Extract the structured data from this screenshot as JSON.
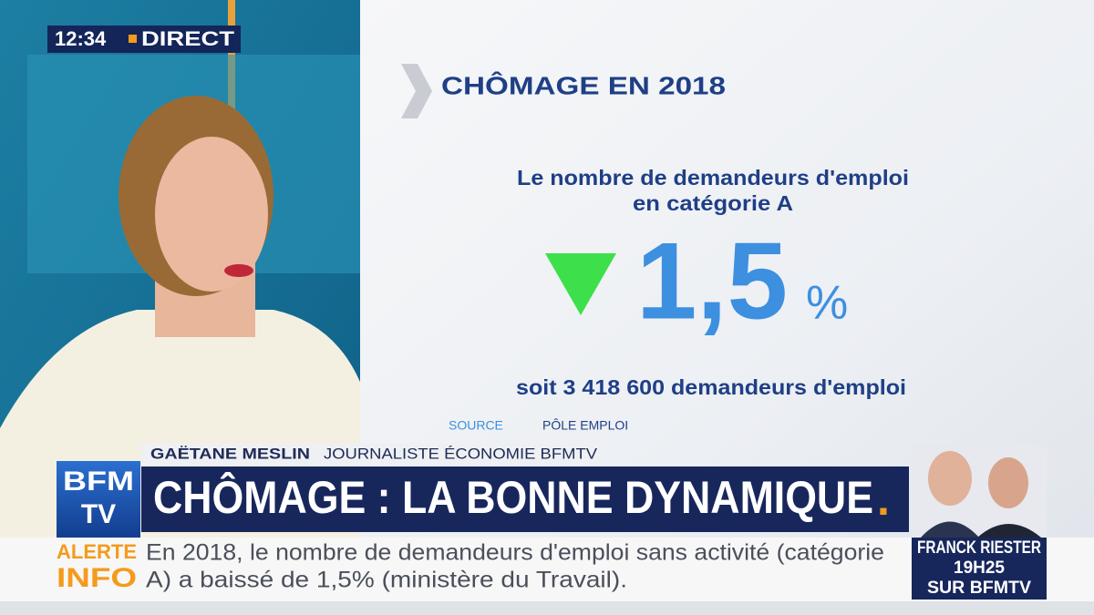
{
  "clock": {
    "time": "12:34",
    "status": "DIRECT"
  },
  "panel": {
    "title": "CHÔMAGE EN 2018",
    "subtitle_line1": "Le nombre de demandeurs d'emploi",
    "subtitle_line2": "en catégorie A",
    "figure": "1,5",
    "unit": "%",
    "detail": "soit 3 418 600 demandeurs d'emploi",
    "source_label": "SOURCE",
    "source": "PÔLE EMPLOI"
  },
  "lower_third": {
    "name": "GAËTANE MESLIN",
    "role": "JOURNALISTE ÉCONOMIE BFMTV",
    "headline": "CHÔMAGE : LA BONNE DYNAMIQUE",
    "headline_dot": "."
  },
  "logo": {
    "top": "BFM",
    "bottom": "TV"
  },
  "ticker": {
    "label_top": "ALERTE",
    "label_bottom": "INFO",
    "line1": "En 2018, le nombre de demandeurs d'emploi sans activité (catégorie",
    "line2": "A) a baissé de 1,5% (ministère du Travail)."
  },
  "promo": {
    "name": "FRANCK RIESTER",
    "time": "19H25",
    "channel": "SUR BFMTV"
  }
}
